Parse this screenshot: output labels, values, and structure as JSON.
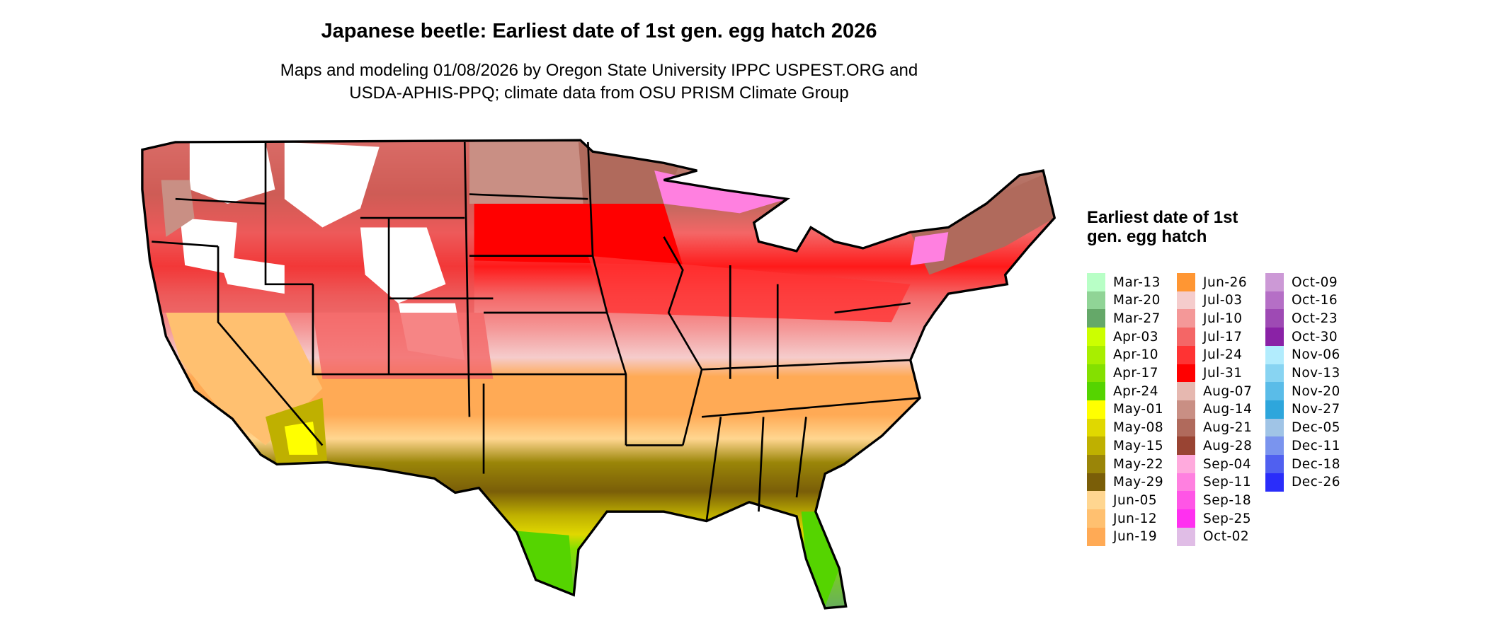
{
  "title": "Japanese beetle: Earliest date of 1st gen. egg hatch 2026",
  "subtitle_lines": [
    "Maps and modeling 01/08/2026 by Oregon State University IPPC USPEST.ORG and",
    "USDA-APHIS-PPQ; climate data from OSU PRISM Climate Group"
  ],
  "map": {
    "region": "Contiguous United States",
    "color_pattern": "north: brown/pink/white; upper midwest: red; central: light pink; south-central: orange; gulf states: olive; gulf coast: yellow; south Texas and Florida: green"
  },
  "legend": {
    "title": "Earliest date of 1st gen. egg hatch",
    "columns": [
      [
        {
          "label": "Mar-13",
          "color": "#b8ffc6"
        },
        {
          "label": "Mar-20",
          "color": "#90d496"
        },
        {
          "label": "Mar-27",
          "color": "#65a869"
        },
        {
          "label": "Apr-03",
          "color": "#ccff00"
        },
        {
          "label": "Apr-10",
          "color": "#a8ee00"
        },
        {
          "label": "Apr-17",
          "color": "#84e000"
        },
        {
          "label": "Apr-24",
          "color": "#55d400"
        },
        {
          "label": "May-01",
          "color": "#ffff00"
        },
        {
          "label": "May-08",
          "color": "#e0d800"
        },
        {
          "label": "May-15",
          "color": "#bfb000"
        },
        {
          "label": "May-22",
          "color": "#9a8508"
        },
        {
          "label": "May-29",
          "color": "#7a5e08"
        },
        {
          "label": "Jun-05",
          "color": "#ffd690"
        },
        {
          "label": "Jun-12",
          "color": "#ffc070"
        },
        {
          "label": "Jun-19",
          "color": "#ffaa55"
        }
      ],
      [
        {
          "label": "Jun-26",
          "color": "#ff9633"
        },
        {
          "label": "Jul-03",
          "color": "#f5cccc"
        },
        {
          "label": "Jul-10",
          "color": "#f49898"
        },
        {
          "label": "Jul-17",
          "color": "#f46666"
        },
        {
          "label": "Jul-24",
          "color": "#ff3333"
        },
        {
          "label": "Jul-31",
          "color": "#ff0000"
        },
        {
          "label": "Aug-07",
          "color": "#e6b8b0"
        },
        {
          "label": "Aug-14",
          "color": "#c98f84"
        },
        {
          "label": "Aug-21",
          "color": "#b06a5c"
        },
        {
          "label": "Aug-28",
          "color": "#994433"
        },
        {
          "label": "Sep-04",
          "color": "#ffaadd"
        },
        {
          "label": "Sep-11",
          "color": "#ff80e0"
        },
        {
          "label": "Sep-18",
          "color": "#ff55e6"
        },
        {
          "label": "Sep-25",
          "color": "#ff30f0"
        },
        {
          "label": "Oct-02",
          "color": "#e0bde6"
        }
      ],
      [
        {
          "label": "Oct-09",
          "color": "#cc99d6"
        },
        {
          "label": "Oct-16",
          "color": "#b56fc6"
        },
        {
          "label": "Oct-23",
          "color": "#9e4ab4"
        },
        {
          "label": "Oct-30",
          "color": "#8a22a6"
        },
        {
          "label": "Nov-06",
          "color": "#b2ecfd"
        },
        {
          "label": "Nov-13",
          "color": "#88d4f2"
        },
        {
          "label": "Nov-20",
          "color": "#5abce8"
        },
        {
          "label": "Nov-27",
          "color": "#2ea6dc"
        },
        {
          "label": "Dec-05",
          "color": "#a0c4e6"
        },
        {
          "label": "Dec-11",
          "color": "#7a94ee"
        },
        {
          "label": "Dec-18",
          "color": "#5060f0"
        },
        {
          "label": "Dec-26",
          "color": "#2a2dfa"
        }
      ]
    ]
  }
}
